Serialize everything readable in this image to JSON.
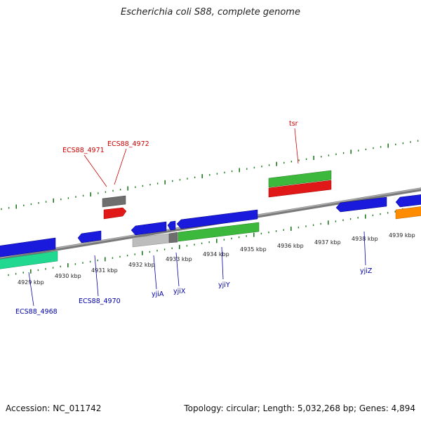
{
  "title": "Escherichia coli S88, complete genome",
  "footer": {
    "accession": "Accession: NC_011742",
    "stats": "Topology: circular; Length: 5,032,268 bp; Genes: 4,894"
  },
  "colors": {
    "backbone": "#808080",
    "tick": "#1e7a1e",
    "gene_label_forward": "#cc0000",
    "gene_label_reverse": "#0000aa",
    "blue": "#1a1adc",
    "green": "#3cb83c",
    "red": "#e01818",
    "gray": "#6e6e6e",
    "light_gray": "#bdbdbd",
    "teal": "#20d890",
    "orange": "#ff8c00"
  },
  "scale_labels": [
    "4929 kbp",
    "4930 kbp",
    "4931 kbp",
    "4932 kbp",
    "4933 kbp",
    "4934 kbp",
    "4935 kbp",
    "4936 kbp",
    "4937 kbp",
    "4938 kbp",
    "4939 kbp"
  ],
  "gene_labels_forward": [
    "ECS88_4971",
    "ECS88_4972",
    "tsr"
  ],
  "gene_labels_reverse": [
    "ECS88_4968",
    "ECS88_4970",
    "yjiA",
    "yjiX",
    "yjiY",
    "yjiZ"
  ]
}
